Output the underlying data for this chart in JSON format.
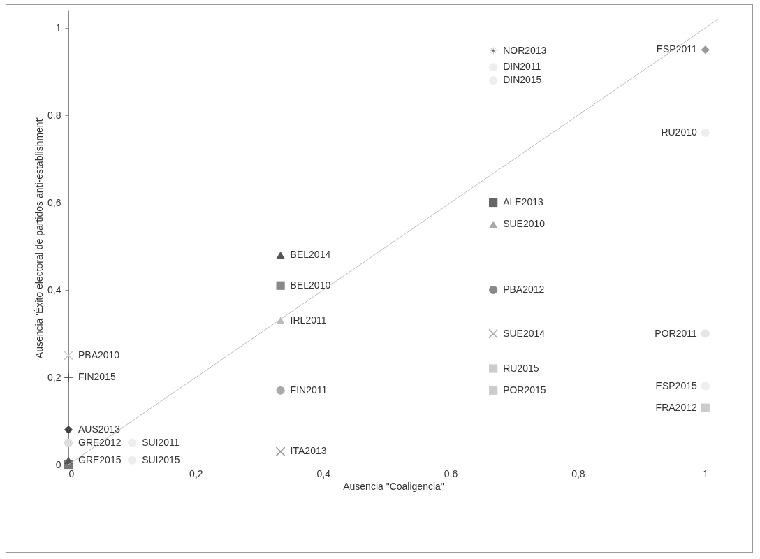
{
  "chart_data": {
    "type": "scatter",
    "xlabel": "Ausencia \"Coaligencia\"",
    "ylabel": "Ausencia 'Éxito electoral de partidos anti-establishment'",
    "xlim": [
      0,
      1.02
    ],
    "ylim": [
      0,
      1.04
    ],
    "xticks": [
      0,
      {
        "value": 0.2,
        "label": "0,2"
      },
      {
        "value": 0.4,
        "label": "0,4"
      },
      {
        "value": 0.6,
        "label": "0,6"
      },
      {
        "value": 0.8,
        "label": "0,8"
      },
      1
    ],
    "yticks": [
      0,
      {
        "value": 0.2,
        "label": "0,2"
      },
      {
        "value": 0.4,
        "label": "0,4"
      },
      {
        "value": 0.6,
        "label": "0,6"
      },
      {
        "value": 0.8,
        "label": "0,8"
      },
      1
    ],
    "grid": false,
    "series": [
      {
        "name": "NOR2013",
        "color": "#555555",
        "marker": "star",
        "x": [
          0.667
        ],
        "values": [
          0.948
        ]
      },
      {
        "name": "ESP2011",
        "color": "#999999",
        "marker": "diamond",
        "x": [
          1
        ],
        "values": [
          0.95
        ]
      },
      {
        "name": "DIN2011",
        "color": "#eeeeee",
        "marker": "circle",
        "x": [
          0.667
        ],
        "values": [
          0.91
        ]
      },
      {
        "name": "DIN2015",
        "color": "#eeeeee",
        "marker": "circle",
        "x": [
          0.667
        ],
        "values": [
          0.88
        ]
      },
      {
        "name": "RU2010",
        "color": "#eeeeee",
        "marker": "circle",
        "x": [
          1
        ],
        "values": [
          0.76
        ]
      },
      {
        "name": "POR2011",
        "color": "#e6e6e6",
        "marker": "circle",
        "x": [
          1
        ],
        "values": [
          0.3
        ]
      },
      {
        "name": "ESP2015",
        "color": "#eeeeee",
        "marker": "circle",
        "x": [
          1
        ],
        "values": [
          0.18
        ]
      },
      {
        "name": "ALE2013",
        "color": "#666666",
        "marker": "square",
        "x": [
          0.667
        ],
        "values": [
          0.6
        ]
      },
      {
        "name": "SUE2010",
        "color": "#aaaaaa",
        "marker": "triangle",
        "x": [
          0.667
        ],
        "values": [
          0.55
        ]
      },
      {
        "name": "PBA2012",
        "color": "#888888",
        "marker": "circle",
        "x": [
          0.667
        ],
        "values": [
          0.4
        ]
      },
      {
        "name": "SUE2014",
        "color": "#aaaaaa",
        "marker": "x",
        "x": [
          0.667
        ],
        "values": [
          0.3
        ]
      },
      {
        "name": "RU2015",
        "color": "#cccccc",
        "marker": "square",
        "x": [
          0.667
        ],
        "values": [
          0.22
        ]
      },
      {
        "name": "POR2015",
        "color": "#cccccc",
        "marker": "square",
        "x": [
          0.667
        ],
        "values": [
          0.17
        ]
      },
      {
        "name": "BEL2014",
        "color": "#555555",
        "marker": "triangle",
        "x": [
          0.333
        ],
        "values": [
          0.48
        ]
      },
      {
        "name": "BEL2010",
        "color": "#888888",
        "marker": "square",
        "x": [
          0.333
        ],
        "values": [
          0.41
        ]
      },
      {
        "name": "IRL2011",
        "color": "#bbbbbb",
        "marker": "triangle",
        "x": [
          0.333
        ],
        "values": [
          0.33
        ]
      },
      {
        "name": "FIN2011",
        "color": "#aaaaaa",
        "marker": "circle",
        "x": [
          0.333
        ],
        "values": [
          0.17
        ]
      },
      {
        "name": "ITA2013",
        "color": "#999999",
        "marker": "x",
        "x": [
          0.333
        ],
        "values": [
          0.03
        ]
      },
      {
        "name": "PBA2010",
        "color": "#cccccc",
        "marker": "x",
        "x": [
          0
        ],
        "values": [
          0.25
        ]
      },
      {
        "name": "FIN2015",
        "color": "#444444",
        "marker": "plus",
        "x": [
          0
        ],
        "values": [
          0.2
        ]
      },
      {
        "name": "AUS2013",
        "color": "#444444",
        "marker": "diamond",
        "x": [
          0
        ],
        "values": [
          0.08
        ]
      },
      {
        "name": "GRE2012",
        "color": "#dddddd",
        "marker": "circle",
        "x": [
          0
        ],
        "values": [
          0.05
        ]
      },
      {
        "color": "#777777",
        "marker": "square",
        "x": [
          0
        ],
        "values": [
          0
        ]
      },
      {
        "name": "GRE2015",
        "color": "#555555",
        "marker": "triangle",
        "x": [
          0
        ],
        "values": [
          0.01
        ]
      },
      {
        "name": "SUI2011",
        "color": "#eeeeee",
        "marker": "circle",
        "x": [
          0.1
        ],
        "values": [
          0.05
        ]
      },
      {
        "name": "SUI2015",
        "color": "#eeeeee",
        "marker": "circle",
        "x": [
          0.1
        ],
        "values": [
          0.01
        ]
      },
      {
        "name": "FRA2012",
        "color": "#cccccc",
        "marker": "square",
        "x": [
          1
        ],
        "values": [
          0.13
        ]
      },
      {
        "type": "line",
        "color": "#bbbbbb",
        "x": [
          0,
          1.02
        ],
        "values": [
          0,
          1.02
        ]
      }
    ]
  }
}
